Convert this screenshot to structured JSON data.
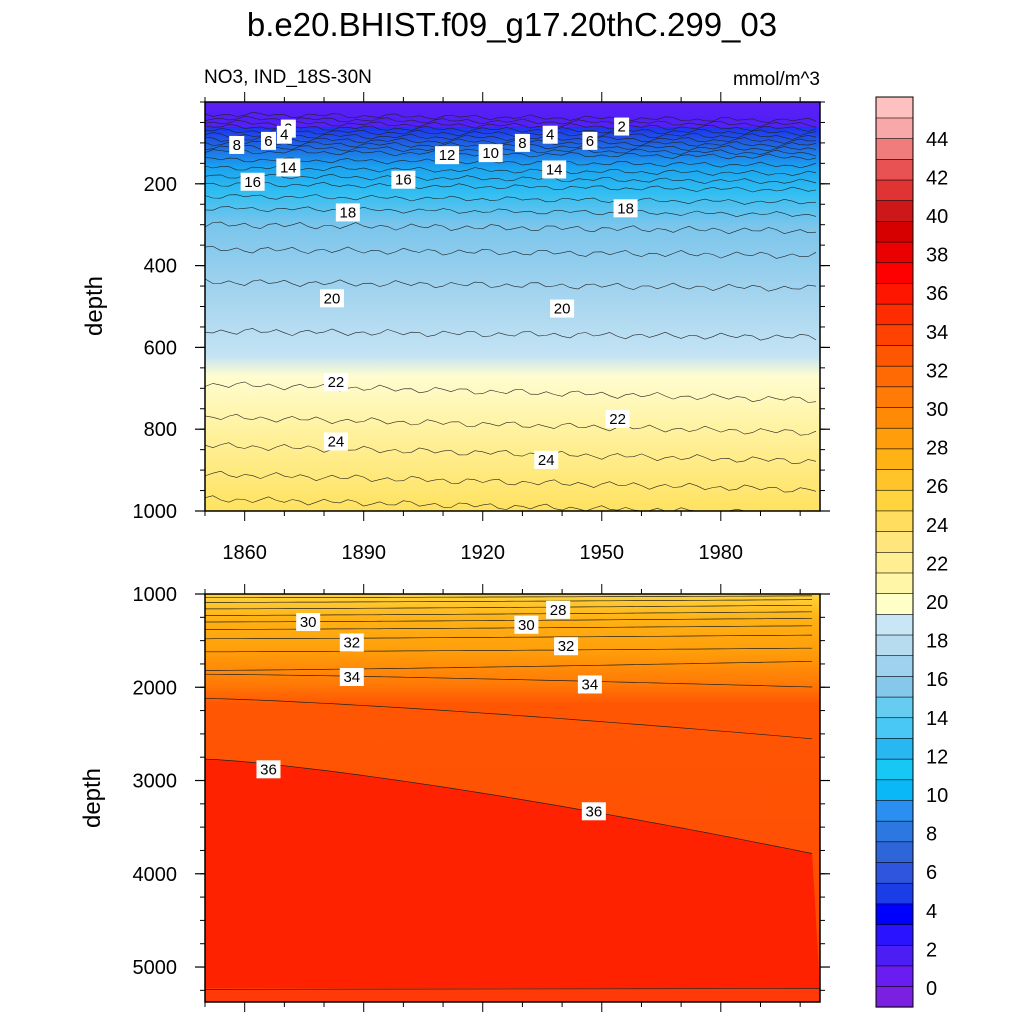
{
  "title": "b.e20.BHIST.f09_g17.20thC.299_03",
  "subtitle_left": "NO3, IND_18S-30N",
  "subtitle_right": "mmol/m^3",
  "chart_data": [
    {
      "type": "contour",
      "panel": "upper",
      "ylabel": "depth",
      "xlim": [
        1850,
        2005
      ],
      "ylim": [
        1000,
        0
      ],
      "x_ticks": [
        1860,
        1890,
        1920,
        1950,
        1980
      ],
      "y_ticks": [
        200,
        400,
        600,
        800,
        1000
      ],
      "contour_labels": [
        {
          "value": "2",
          "x": 1871,
          "y": 65
        },
        {
          "value": "2",
          "x": 1955,
          "y": 60
        },
        {
          "value": "4",
          "x": 1870,
          "y": 80
        },
        {
          "value": "4",
          "x": 1937,
          "y": 80
        },
        {
          "value": "6",
          "x": 1866,
          "y": 95
        },
        {
          "value": "6",
          "x": 1947,
          "y": 95
        },
        {
          "value": "8",
          "x": 1858,
          "y": 105
        },
        {
          "value": "8",
          "x": 1930,
          "y": 100
        },
        {
          "value": "10",
          "x": 1922,
          "y": 125
        },
        {
          "value": "12",
          "x": 1911,
          "y": 130
        },
        {
          "value": "14",
          "x": 1871,
          "y": 160
        },
        {
          "value": "14",
          "x": 1938,
          "y": 165
        },
        {
          "value": "16",
          "x": 1862,
          "y": 195
        },
        {
          "value": "16",
          "x": 1900,
          "y": 190
        },
        {
          "value": "18",
          "x": 1886,
          "y": 270
        },
        {
          "value": "18",
          "x": 1956,
          "y": 260
        },
        {
          "value": "20",
          "x": 1882,
          "y": 480
        },
        {
          "value": "20",
          "x": 1940,
          "y": 505
        },
        {
          "value": "22",
          "x": 1883,
          "y": 685
        },
        {
          "value": "22",
          "x": 1954,
          "y": 775
        },
        {
          "value": "24",
          "x": 1883,
          "y": 830
        },
        {
          "value": "24",
          "x": 1936,
          "y": 875
        }
      ]
    },
    {
      "type": "contour",
      "panel": "lower",
      "ylabel": "depth",
      "xlim": [
        1850,
        2005
      ],
      "ylim": [
        5375,
        1000
      ],
      "y_ticks": [
        1000,
        2000,
        3000,
        4000,
        5000
      ],
      "contour_labels": [
        {
          "value": "28",
          "x": 1939,
          "y": 1170
        },
        {
          "value": "30",
          "x": 1876,
          "y": 1300
        },
        {
          "value": "30",
          "x": 1931,
          "y": 1330
        },
        {
          "value": "32",
          "x": 1887,
          "y": 1520
        },
        {
          "value": "32",
          "x": 1941,
          "y": 1560
        },
        {
          "value": "34",
          "x": 1887,
          "y": 1890
        },
        {
          "value": "34",
          "x": 1947,
          "y": 1970
        },
        {
          "value": "36",
          "x": 1866,
          "y": 2880
        },
        {
          "value": "36",
          "x": 1948,
          "y": 3330
        }
      ]
    }
  ],
  "colorbar": {
    "labels": [
      "0",
      "2",
      "4",
      "6",
      "8",
      "10",
      "12",
      "14",
      "16",
      "18",
      "20",
      "22",
      "24",
      "26",
      "28",
      "30",
      "32",
      "34",
      "36",
      "38",
      "40",
      "42",
      "44"
    ],
    "colors": [
      "#7b1fe0",
      "#6a1df0",
      "#4a1ef5",
      "#2a14ff",
      "#0000ff",
      "#1b3de8",
      "#2f55df",
      "#2e66d9",
      "#2c78e0",
      "#2a8ff0",
      "#0ab7f7",
      "#18c8f4",
      "#28b7f0",
      "#49c7f5",
      "#66ccf0",
      "#85c8ec",
      "#9fd2ee",
      "#b7dcf0",
      "#c8e6f6",
      "#ffffc8",
      "#fff6a8",
      "#ffef92",
      "#ffe67c",
      "#ffdd5e",
      "#ffd43c",
      "#ffc42a",
      "#ffb214",
      "#ff9e0a",
      "#ff8a06",
      "#ff7a06",
      "#ff6a04",
      "#ff5604",
      "#ff4202",
      "#ff2c00",
      "#ff1600",
      "#ff0000",
      "#ea0000",
      "#d60000",
      "#cc1818",
      "#e03434",
      "#e85252",
      "#f07c7c",
      "#f8a8a8",
      "#ffc0c0"
    ]
  },
  "colors": {
    "frame": "#000000",
    "label_box": "#ffffff"
  }
}
